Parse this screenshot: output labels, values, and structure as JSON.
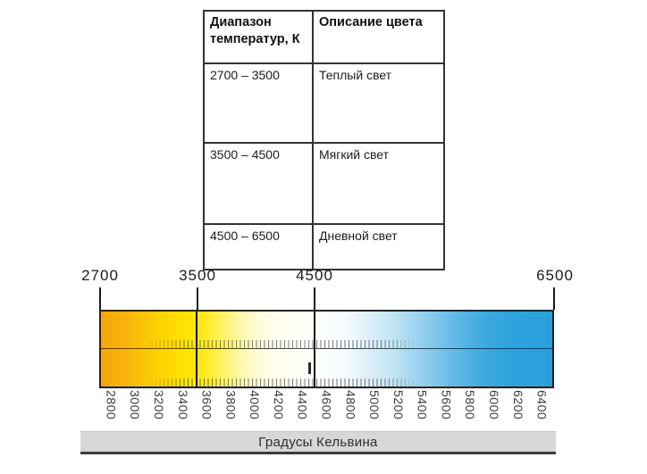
{
  "table": {
    "headers": {
      "range": "Диапазон температур, К",
      "description": "Описание цвета"
    },
    "rows": [
      {
        "range": "2700 – 3500",
        "description": "Теплый свет"
      },
      {
        "range": "3500 – 4500",
        "description": "Мягкий свет"
      },
      {
        "range": "4500 – 6500",
        "description": "Дневной свет"
      }
    ]
  },
  "scale": {
    "unit_label": "Градусы Кельвина",
    "min_k": 2700,
    "max_k": 6500,
    "top_labels": [
      "2700",
      "3500",
      "4500",
      "6500"
    ],
    "bottom_labels": [
      "2800",
      "3000",
      "3200",
      "3400",
      "3600",
      "3800",
      "4000",
      "4200",
      "4400",
      "4600",
      "4800",
      "5000",
      "5200",
      "5400",
      "5600",
      "5800",
      "6000",
      "6200",
      "6400"
    ],
    "colors": {
      "warm_end": "#f5a40e",
      "yellow": "#ffe400",
      "neutral_mid": "#fffefa",
      "cool_end": "#28a0db",
      "axis_bar_bg": "#d7d7d7",
      "axis_bar_border": "#3d3d3d"
    }
  }
}
